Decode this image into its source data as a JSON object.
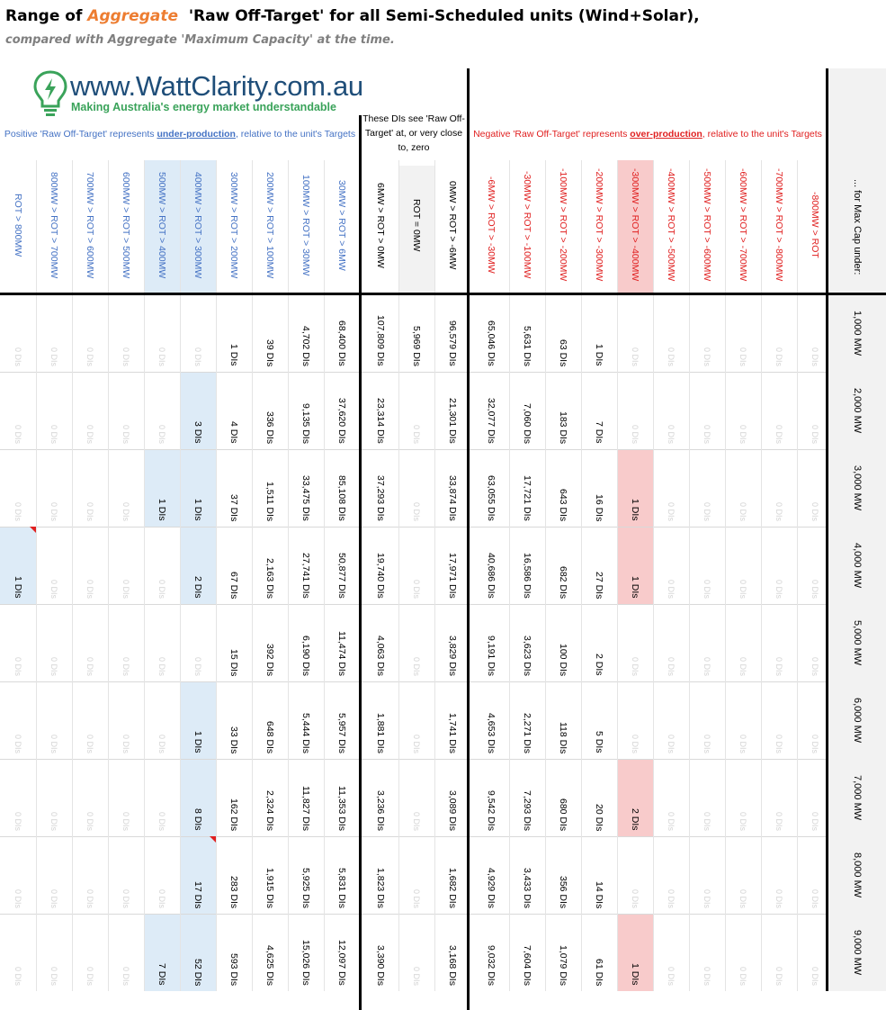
{
  "title": {
    "prefix": "Range of ",
    "highlight": "Aggregate",
    "middle": "  'Raw Off-Target' ",
    "suffix": "for all Semi-Scheduled units (Wind+Solar),"
  },
  "subtitle": "compared with Aggregate 'Maximum Capacity' at the time.",
  "logo": {
    "text": "www.WattClarity.com.au",
    "tagline": "Making Australia's energy market understandable"
  },
  "groups": {
    "positive": {
      "prefix": "Positive 'Raw Off-Target' represents ",
      "emphasis": "under-production",
      "suffix": ", relative to the unit's Targets"
    },
    "middle": "These DIs see 'Raw Off-Target' at, or very close to, zero",
    "negative": {
      "prefix": "Negative 'Raw Off-Target' represents ",
      "emphasis": "over-production",
      "suffix": ", relative to the unit's Targets"
    }
  },
  "colors": {
    "positive": "#4472c4",
    "negative": "#e02020",
    "blue_fill": "#ddebf7",
    "red_fill": "#f8cbcb",
    "grey_fill": "#f2f2f2",
    "zero_text": "#d4d4d4"
  },
  "chart_data": {
    "type": "table",
    "row_header": "... for Max Cap under:",
    "rows": [
      "1,000 MW",
      "2,000 MW",
      "3,000 MW",
      "4,000 MW",
      "5,000 MW",
      "6,000 MW",
      "7,000 MW",
      "8,000 MW",
      "9,000 MW"
    ],
    "columns": [
      {
        "label": "ROT > 800MW",
        "group": "positive",
        "fill": "",
        "values": [
          "0 DIs",
          "0 DIs",
          "0 DIs",
          "1 DIs",
          "0 DIs",
          "0 DIs",
          "0 DIs",
          "0 DIs",
          "0 DIs"
        ],
        "fills": [
          "",
          "",
          "",
          "blue",
          "",
          "",
          "",
          "",
          ""
        ]
      },
      {
        "label": "800MW > ROT > 700MW",
        "group": "positive",
        "fill": "",
        "values": [
          "0 DIs",
          "0 DIs",
          "0 DIs",
          "0 DIs",
          "0 DIs",
          "0 DIs",
          "0 DIs",
          "0 DIs",
          "0 DIs"
        ],
        "fills": [
          "",
          "",
          "",
          "",
          "",
          "",
          "",
          "",
          ""
        ]
      },
      {
        "label": "700MW > ROT > 600MW",
        "group": "positive",
        "fill": "",
        "values": [
          "0 DIs",
          "0 DIs",
          "0 DIs",
          "0 DIs",
          "0 DIs",
          "0 DIs",
          "0 DIs",
          "0 DIs",
          "0 DIs"
        ],
        "fills": [
          "",
          "",
          "",
          "",
          "",
          "",
          "",
          "",
          ""
        ]
      },
      {
        "label": "600MW > ROT > 500MW",
        "group": "positive",
        "fill": "",
        "values": [
          "0 DIs",
          "0 DIs",
          "0 DIs",
          "0 DIs",
          "0 DIs",
          "0 DIs",
          "0 DIs",
          "0 DIs",
          "0 DIs"
        ],
        "fills": [
          "",
          "",
          "",
          "",
          "",
          "",
          "",
          "",
          ""
        ]
      },
      {
        "label": "500MW > ROT > 400MW",
        "group": "positive",
        "fill": "blue",
        "values": [
          "0 DIs",
          "0 DIs",
          "1 DIs",
          "0 DIs",
          "0 DIs",
          "0 DIs",
          "0 DIs",
          "0 DIs",
          "7 DIs"
        ],
        "fills": [
          "",
          "",
          "blue",
          "",
          "",
          "",
          "",
          "",
          "blue"
        ]
      },
      {
        "label": "400MW > ROT > 300MW",
        "group": "positive",
        "fill": "blue",
        "values": [
          "0 DIs",
          "3 DIs",
          "1 DIs",
          "2 DIs",
          "0 DIs",
          "1 DIs",
          "8 DIs",
          "17 DIs",
          "52 DIs"
        ],
        "fills": [
          "",
          "blue",
          "blue",
          "blue",
          "",
          "blue",
          "blue",
          "blue",
          "blue"
        ]
      },
      {
        "label": "300MW > ROT > 200MW",
        "group": "positive",
        "fill": "",
        "values": [
          "1 DIs",
          "4 DIs",
          "37 DIs",
          "67 DIs",
          "15 DIs",
          "33 DIs",
          "162 DIs",
          "283 DIs",
          "593 DIs"
        ],
        "fills": [
          "",
          "",
          "",
          "",
          "",
          "",
          "",
          "",
          ""
        ]
      },
      {
        "label": "200MW > ROT > 100MW",
        "group": "positive",
        "fill": "",
        "values": [
          "39 DIs",
          "336 DIs",
          "1,511 DIs",
          "2,163 DIs",
          "392 DIs",
          "648 DIs",
          "2,324 DIs",
          "1,915 DIs",
          "4,625 DIs"
        ],
        "fills": [
          "",
          "",
          "",
          "",
          "",
          "",
          "",
          "",
          ""
        ]
      },
      {
        "label": "100MW > ROT > 30MW",
        "group": "positive",
        "fill": "",
        "values": [
          "4,702 DIs",
          "9,135 DIs",
          "33,475 DIs",
          "27,741 DIs",
          "6,190 DIs",
          "5,444 DIs",
          "11,827 DIs",
          "5,925 DIs",
          "15,026 DIs"
        ],
        "fills": [
          "",
          "",
          "",
          "",
          "",
          "",
          "",
          "",
          ""
        ]
      },
      {
        "label": "30MW > ROT > 6MW",
        "group": "positive",
        "fill": "",
        "values": [
          "68,400 DIs",
          "37,620 DIs",
          "85,108 DIs",
          "50,877 DIs",
          "11,474 DIs",
          "5,957 DIs",
          "11,353 DIs",
          "5,831 DIs",
          "12,097 DIs"
        ],
        "fills": [
          "",
          "",
          "",
          "",
          "",
          "",
          "",
          "",
          ""
        ]
      },
      {
        "label": "6MW > ROT > 0MW",
        "group": "middle",
        "fill": "",
        "values": [
          "107,809 DIs",
          "23,314 DIs",
          "37,293 DIs",
          "19,740 DIs",
          "4,063 DIs",
          "1,881 DIs",
          "3,236 DIs",
          "1,823 DIs",
          "3,390 DIs"
        ],
        "fills": [
          "",
          "",
          "",
          "",
          "",
          "",
          "",
          "",
          ""
        ]
      },
      {
        "label": "ROT = 0MW",
        "group": "middle",
        "fill": "grey",
        "values": [
          "5,969 DIs",
          "0 DIs",
          "0 DIs",
          "0 DIs",
          "0 DIs",
          "0 DIs",
          "0 DIs",
          "0 DIs",
          "0 DIs"
        ],
        "fills": [
          "",
          "",
          "",
          "",
          "",
          "",
          "",
          "",
          ""
        ]
      },
      {
        "label": "0MW > ROT > -6MW",
        "group": "middle",
        "fill": "",
        "values": [
          "96,579 DIs",
          "21,301 DIs",
          "33,874 DIs",
          "17,971 DIs",
          "3,829 DIs",
          "1,741 DIs",
          "3,089 DIs",
          "1,682 DIs",
          "3,168 DIs"
        ],
        "fills": [
          "",
          "",
          "",
          "",
          "",
          "",
          "",
          "",
          ""
        ]
      },
      {
        "label": "-6MW > ROT > -30MW",
        "group": "negative",
        "fill": "",
        "values": [
          "65,046 DIs",
          "32,077 DIs",
          "63,055 DIs",
          "40,686 DIs",
          "9,191 DIs",
          "4,653 DIs",
          "9,542 DIs",
          "4,929 DIs",
          "9,032 DIs"
        ],
        "fills": [
          "",
          "",
          "",
          "",
          "",
          "",
          "",
          "",
          ""
        ]
      },
      {
        "label": "-30MW > ROT > -100MW",
        "group": "negative",
        "fill": "",
        "values": [
          "5,631 DIs",
          "7,060 DIs",
          "17,721 DIs",
          "16,586 DIs",
          "3,623 DIs",
          "2,271 DIs",
          "7,293 DIs",
          "3,433 DIs",
          "7,604 DIs"
        ],
        "fills": [
          "",
          "",
          "",
          "",
          "",
          "",
          "",
          "",
          ""
        ]
      },
      {
        "label": "-100MW > ROT > -200MW",
        "group": "negative",
        "fill": "",
        "values": [
          "63 DIs",
          "183 DIs",
          "643 DIs",
          "682 DIs",
          "100 DIs",
          "118 DIs",
          "680 DIs",
          "356 DIs",
          "1,079 DIs"
        ],
        "fills": [
          "",
          "",
          "",
          "",
          "",
          "",
          "",
          "",
          ""
        ]
      },
      {
        "label": "-200MW > ROT > -300MW",
        "group": "negative",
        "fill": "",
        "values": [
          "1 DIs",
          "7 DIs",
          "16 DIs",
          "27 DIs",
          "2 DIs",
          "5 DIs",
          "20 DIs",
          "14 DIs",
          "61 DIs"
        ],
        "fills": [
          "",
          "",
          "",
          "",
          "",
          "",
          "",
          "",
          ""
        ]
      },
      {
        "label": "-300MW > ROT > -400MW",
        "group": "negative",
        "fill": "red",
        "values": [
          "0 DIs",
          "0 DIs",
          "1 DIs",
          "1 DIs",
          "0 DIs",
          "0 DIs",
          "2 DIs",
          "0 DIs",
          "1 DIs"
        ],
        "fills": [
          "",
          "",
          "red",
          "red",
          "",
          "",
          "red",
          "",
          "red"
        ]
      },
      {
        "label": "-400MW > ROT > -500MW",
        "group": "negative",
        "fill": "",
        "values": [
          "0 DIs",
          "0 DIs",
          "0 DIs",
          "0 DIs",
          "0 DIs",
          "0 DIs",
          "0 DIs",
          "0 DIs",
          "0 DIs"
        ],
        "fills": [
          "",
          "",
          "",
          "",
          "",
          "",
          "",
          "",
          ""
        ]
      },
      {
        "label": "-500MW > ROT > -600MW",
        "group": "negative",
        "fill": "",
        "values": [
          "0 DIs",
          "0 DIs",
          "0 DIs",
          "0 DIs",
          "0 DIs",
          "0 DIs",
          "0 DIs",
          "0 DIs",
          "0 DIs"
        ],
        "fills": [
          "",
          "",
          "",
          "",
          "",
          "",
          "",
          "",
          ""
        ]
      },
      {
        "label": "-600MW > ROT > -700MW",
        "group": "negative",
        "fill": "",
        "values": [
          "0 DIs",
          "0 DIs",
          "0 DIs",
          "0 DIs",
          "0 DIs",
          "0 DIs",
          "0 DIs",
          "0 DIs",
          "0 DIs"
        ],
        "fills": [
          "",
          "",
          "",
          "",
          "",
          "",
          "",
          "",
          ""
        ]
      },
      {
        "label": "-700MW > ROT > -800MW",
        "group": "negative",
        "fill": "",
        "values": [
          "0 DIs",
          "0 DIs",
          "0 DIs",
          "0 DIs",
          "0 DIs",
          "0 DIs",
          "0 DIs",
          "0 DIs",
          "0 DIs"
        ],
        "fills": [
          "",
          "",
          "",
          "",
          "",
          "",
          "",
          "",
          ""
        ]
      },
      {
        "label": "-800MW > ROT",
        "group": "negative",
        "fill": "",
        "values": [
          "0 DIs",
          "0 DIs",
          "0 DIs",
          "0 DIs",
          "0 DIs",
          "0 DIs",
          "0 DIs",
          "0 DIs",
          "0 DIs"
        ],
        "fills": [
          "",
          "",
          "",
          "",
          "",
          "",
          "",
          "",
          ""
        ]
      }
    ]
  }
}
